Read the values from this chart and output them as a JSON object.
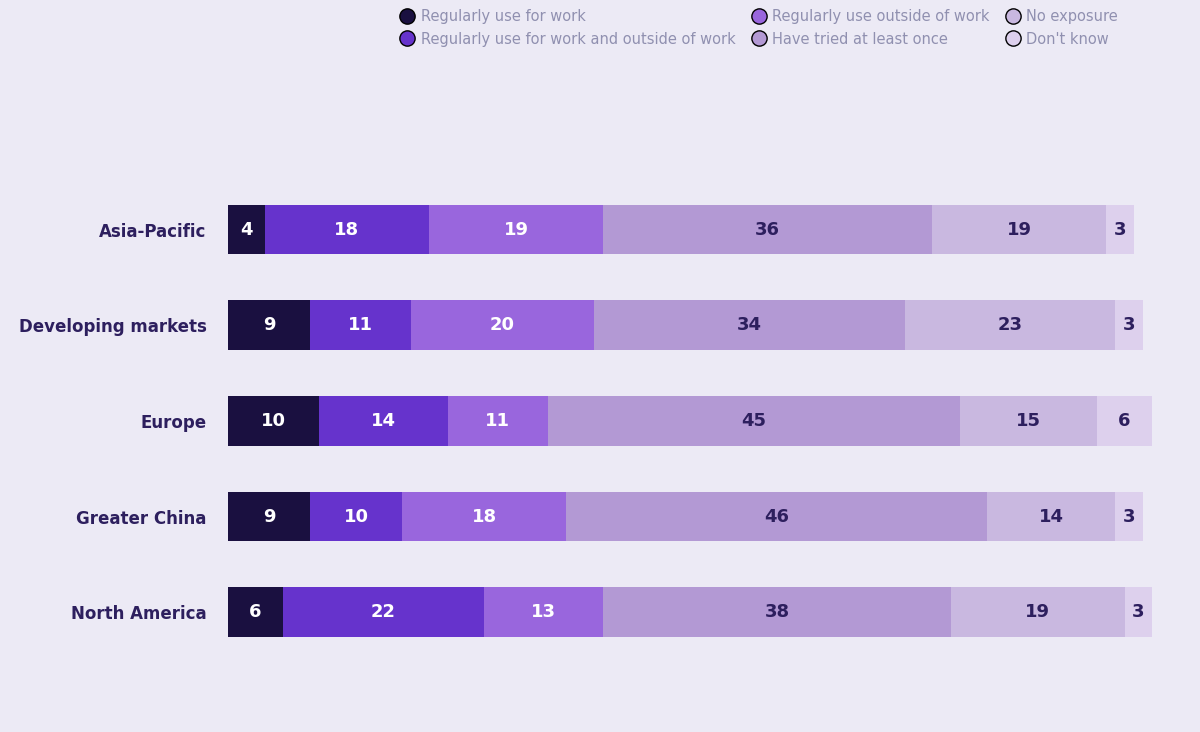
{
  "categories": [
    "Asia-Pacific",
    "Developing markets",
    "Europe",
    "Greater China",
    "North America"
  ],
  "segments": [
    "Regularly use for work",
    "Regularly use for work and outside of work",
    "Regularly use outside of work",
    "Have tried at least once",
    "No exposure",
    "Don't know"
  ],
  "values": [
    [
      4,
      18,
      19,
      36,
      19,
      3
    ],
    [
      9,
      11,
      20,
      34,
      23,
      3
    ],
    [
      10,
      14,
      11,
      45,
      15,
      6
    ],
    [
      9,
      10,
      18,
      46,
      14,
      3
    ],
    [
      6,
      22,
      13,
      38,
      19,
      3
    ]
  ],
  "colors": [
    "#1a1040",
    "#6633cc",
    "#9966dd",
    "#b399d4",
    "#c9b8e0",
    "#ddd0ed"
  ],
  "background_color": "#eceaf5",
  "text_color_white": "#ffffff",
  "text_color_dark": "#2d1f5e",
  "bar_height": 0.52,
  "figsize": [
    12.0,
    7.32
  ],
  "dpi": 100,
  "legend_text_color": "#9090b0",
  "label_fontsize": 12,
  "bar_text_fontsize": 13
}
